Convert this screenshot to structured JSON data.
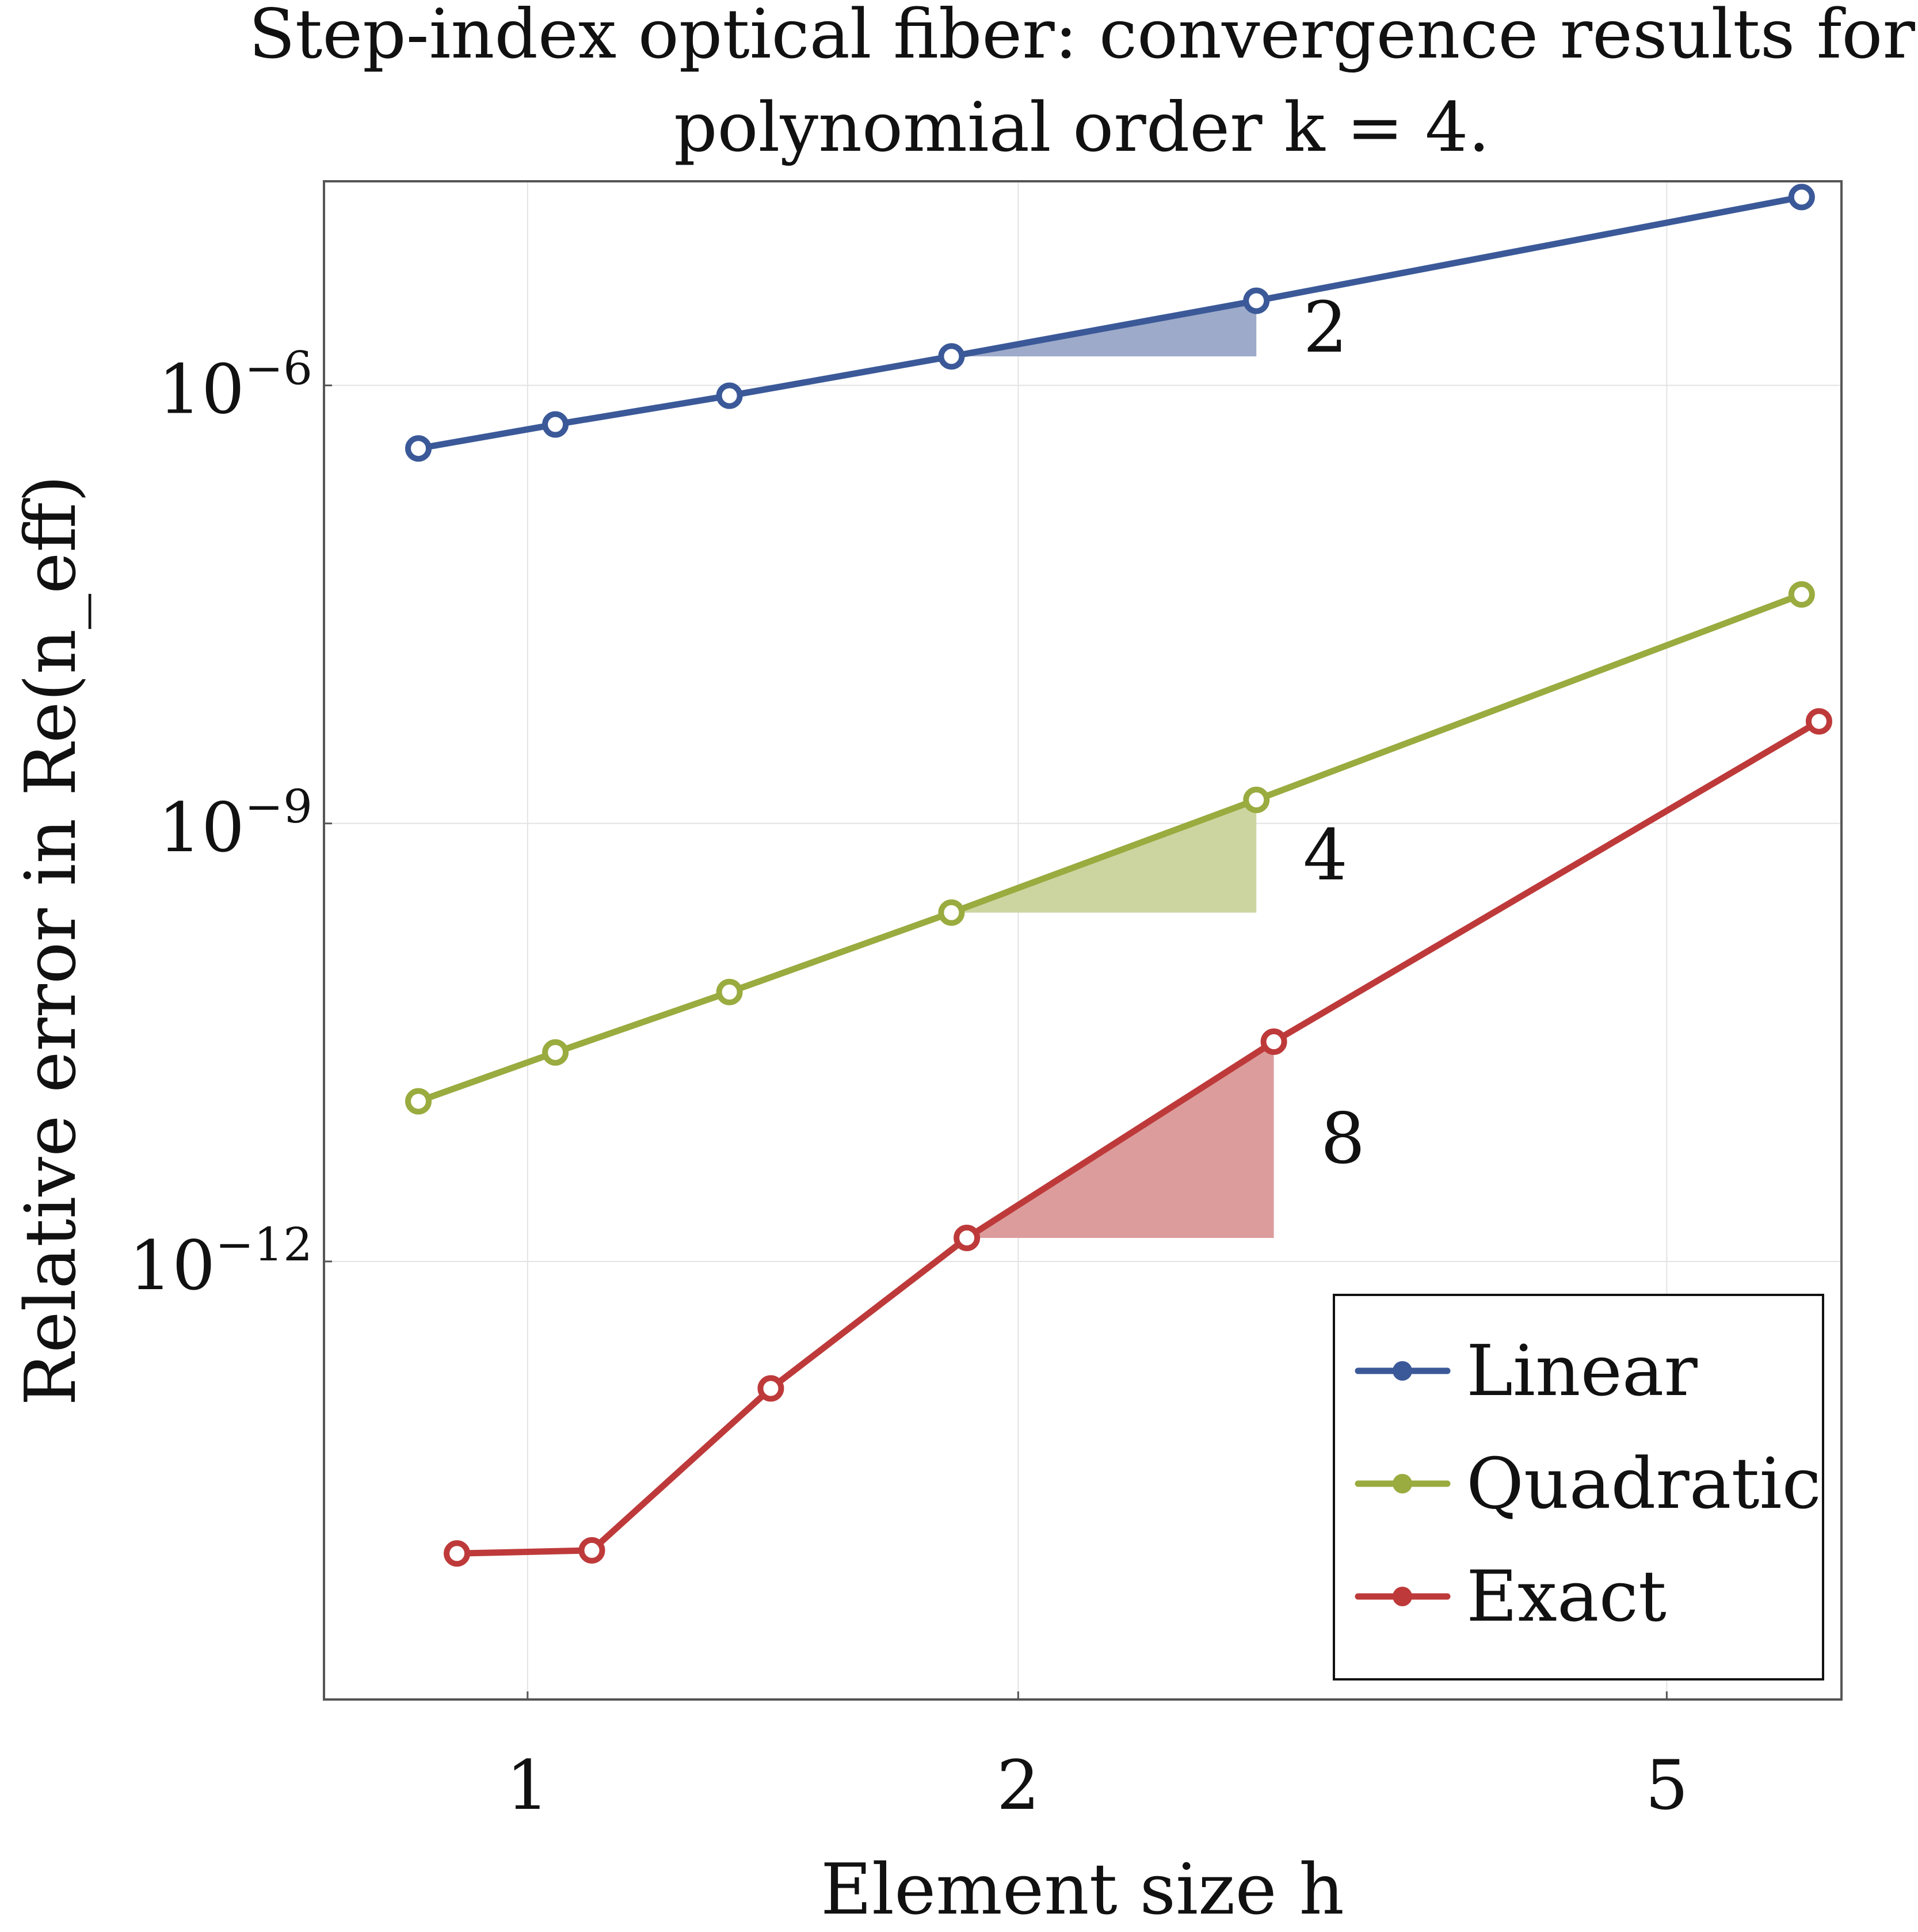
{
  "chart_data": {
    "type": "line",
    "title_line1": "Step-index optical fiber: convergence results for",
    "title_line2": "polynomial order k = 4.",
    "xlabel": "Element size h",
    "ylabel": "Relative error in  Re(n_eff)",
    "xscale": "log",
    "yscale": "log",
    "xlim": [
      0.75,
      6.4
    ],
    "ylim": [
      1e-15,
      2.5e-05
    ],
    "xticks": [
      {
        "value": 1,
        "label": "1"
      },
      {
        "value": 2,
        "label": "2"
      },
      {
        "value": 5,
        "label": "5"
      }
    ],
    "yticks": [
      {
        "value": 1e-06,
        "label": "10",
        "sup": "−6"
      },
      {
        "value": 1e-09,
        "label": "10",
        "sup": "−9"
      },
      {
        "value": 1e-12,
        "label": "10",
        "sup": "−12"
      }
    ],
    "grid": true,
    "legend_position": "bottom-right",
    "series": [
      {
        "name": "Linear",
        "color": "#3B5998",
        "x": [
          0.857,
          1.04,
          1.33,
          1.82,
          2.8,
          6.05
        ],
        "y": [
          3.7e-07,
          5.4e-07,
          8.5e-07,
          1.58e-06,
          3.8e-06,
          1.95e-05
        ]
      },
      {
        "name": "Quadratic",
        "color": "#9AAB3F",
        "x": [
          0.857,
          1.04,
          1.33,
          1.82,
          2.8,
          6.05
        ],
        "y": [
          1.25e-11,
          2.7e-11,
          7e-11,
          2.45e-10,
          1.45e-09,
          3.7e-08
        ]
      },
      {
        "name": "Exact",
        "color": "#BE3A3A",
        "x": [
          0.905,
          1.095,
          1.41,
          1.86,
          2.87,
          6.2
        ],
        "y": [
          1e-14,
          1.05e-14,
          1.35e-13,
          1.45e-12,
          3.2e-11,
          5e-09
        ]
      }
    ],
    "slope_triangles": [
      {
        "series": "Linear",
        "label": "2",
        "x0": 1.82,
        "x1": 2.8,
        "y0": 1.58e-06,
        "y1": 3.8e-06,
        "fill": "#9DAAC9"
      },
      {
        "series": "Quadratic",
        "label": "4",
        "x0": 1.82,
        "x1": 2.8,
        "y0": 2.45e-10,
        "y1": 1.45e-09,
        "fill": "#CCD5A0"
      },
      {
        "series": "Exact",
        "label": "8",
        "x0": 1.86,
        "x1": 2.87,
        "y0": 1.45e-12,
        "y1": 3.2e-11,
        "fill": "#DC9C9C"
      }
    ]
  }
}
